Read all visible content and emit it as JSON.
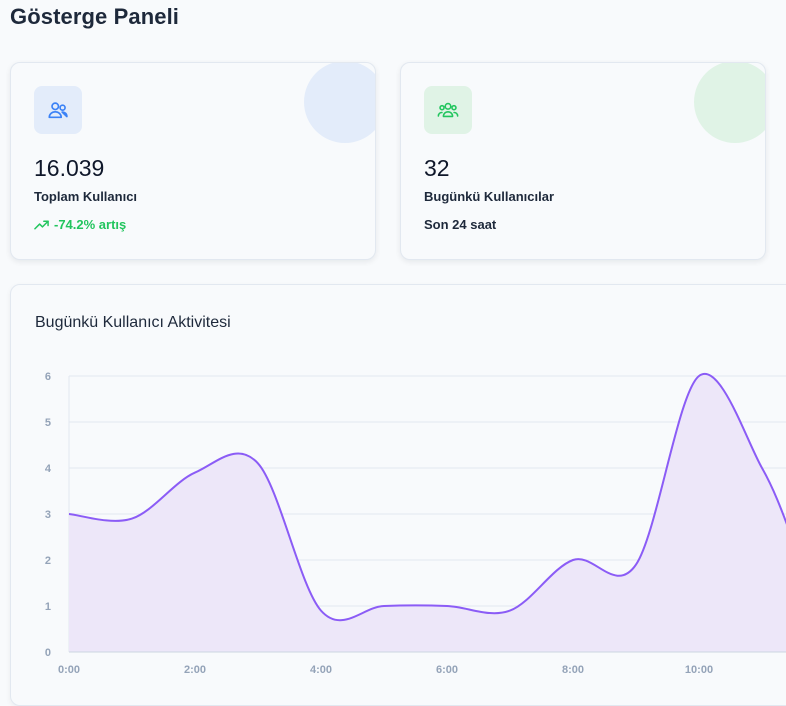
{
  "page": {
    "title": "Gösterge Paneli"
  },
  "cards": [
    {
      "value": "16.039",
      "label": "Toplam Kullanıcı",
      "sub": "-74.2% artış",
      "icon": "users-icon",
      "trend_icon": "trending-up-icon",
      "accent": "#3b82f6",
      "tint": "#e3ecfa"
    },
    {
      "value": "32",
      "label": "Bugünkü Kullanıcılar",
      "sub": "Son 24 saat",
      "icon": "user-group-icon",
      "accent": "#22c55e",
      "tint": "#e0f3e6"
    }
  ],
  "colors": {
    "positive": "#22c55e",
    "line": "#8b5cf6",
    "area": "#ede7f9"
  },
  "chart": {
    "title": "Bugünkü Kullanıcı Aktivitesi"
  },
  "chart_data": {
    "type": "area",
    "title": "Bugünkü Kullanıcı Aktivitesi",
    "x": [
      0,
      1,
      2,
      3,
      4,
      5,
      6,
      7,
      8,
      9,
      10,
      11,
      11.5
    ],
    "y": [
      3,
      2.9,
      3.9,
      4.1,
      0.9,
      1,
      1,
      0.9,
      2,
      1.9,
      6,
      4,
      2.4
    ],
    "x_ticks": [
      "0:00",
      "2:00",
      "4:00",
      "6:00",
      "8:00",
      "10:00"
    ],
    "y_ticks": [
      "0",
      "1",
      "2",
      "3",
      "4",
      "5",
      "6"
    ],
    "ylim": [
      0,
      6
    ],
    "grid": "horizontal"
  }
}
